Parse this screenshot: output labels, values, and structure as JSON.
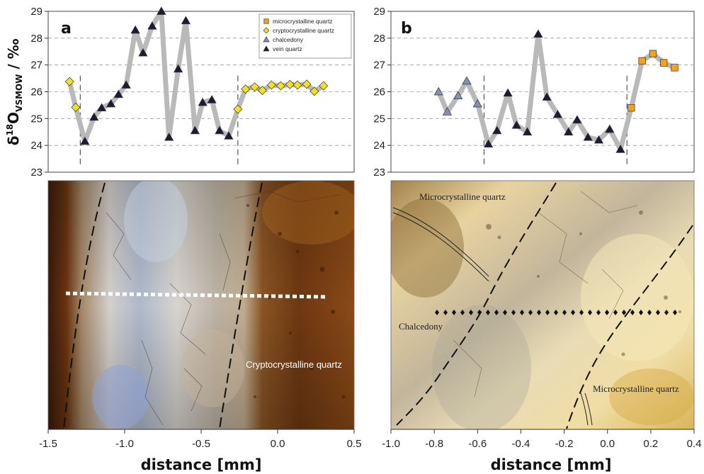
{
  "chart_data": [
    {
      "type": "line",
      "panel_label": "a",
      "ylabel_parts": [
        "δ",
        "18",
        "O",
        "VSMOW",
        " / ‰"
      ],
      "xlabel": "distance [mm]",
      "xlim": [
        -1.5,
        0.5
      ],
      "ylim": [
        23,
        29
      ],
      "xticks": [
        -1.5,
        -1.0,
        -0.5,
        0.0,
        0.5
      ],
      "xtick_labels": [
        "-1.5",
        "-1.0",
        "-0.5",
        "0.0",
        "0.5"
      ],
      "yticks": [
        23,
        24,
        25,
        26,
        27,
        28,
        29
      ],
      "grid": "horizontal dashed",
      "boundaries_x": [
        -1.29,
        -0.26
      ],
      "legend": {
        "placement": "top-right",
        "entries": [
          {
            "name": "microcrystalline quartz",
            "marker": "square",
            "color": "#f3a21b"
          },
          {
            "name": "cryptocrystalline quartz",
            "marker": "diamond",
            "color": "#f2df2a"
          },
          {
            "name": "chalcedony",
            "marker": "triangle",
            "color": "#8391b8"
          },
          {
            "name": "vein quartz",
            "marker": "triangle",
            "color": "#1b1b33"
          }
        ]
      },
      "points": [
        {
          "x": -1.36,
          "y": 26.38,
          "s": "cryptocrystalline quartz"
        },
        {
          "x": -1.32,
          "y": 25.42,
          "s": "cryptocrystalline quartz"
        },
        {
          "x": -1.26,
          "y": 24.15,
          "s": "vein quartz"
        },
        {
          "x": -1.2,
          "y": 25.05,
          "s": "vein quartz"
        },
        {
          "x": -1.15,
          "y": 25.4,
          "s": "vein quartz"
        },
        {
          "x": -1.09,
          "y": 25.55,
          "s": "vein quartz"
        },
        {
          "x": -1.04,
          "y": 25.9,
          "s": "vein quartz"
        },
        {
          "x": -0.99,
          "y": 26.25,
          "s": "vein quartz"
        },
        {
          "x": -0.93,
          "y": 28.3,
          "s": "vein quartz"
        },
        {
          "x": -0.88,
          "y": 27.45,
          "s": "vein quartz"
        },
        {
          "x": -0.82,
          "y": 28.45,
          "s": "vein quartz"
        },
        {
          "x": -0.76,
          "y": 29.0,
          "s": "vein quartz"
        },
        {
          "x": -0.71,
          "y": 24.3,
          "s": "vein quartz"
        },
        {
          "x": -0.65,
          "y": 26.85,
          "s": "vein quartz"
        },
        {
          "x": -0.6,
          "y": 28.65,
          "s": "vein quartz"
        },
        {
          "x": -0.54,
          "y": 24.55,
          "s": "vein quartz"
        },
        {
          "x": -0.49,
          "y": 25.6,
          "s": "vein quartz"
        },
        {
          "x": -0.43,
          "y": 25.7,
          "s": "vein quartz"
        },
        {
          "x": -0.38,
          "y": 24.55,
          "s": "vein quartz"
        },
        {
          "x": -0.32,
          "y": 24.35,
          "s": "vein quartz"
        },
        {
          "x": -0.26,
          "y": 25.35,
          "s": "cryptocrystalline quartz"
        },
        {
          "x": -0.21,
          "y": 26.1,
          "s": "cryptocrystalline quartz"
        },
        {
          "x": -0.15,
          "y": 26.18,
          "s": "cryptocrystalline quartz"
        },
        {
          "x": -0.1,
          "y": 26.05,
          "s": "cryptocrystalline quartz"
        },
        {
          "x": -0.04,
          "y": 26.25,
          "s": "cryptocrystalline quartz"
        },
        {
          "x": 0.02,
          "y": 26.22,
          "s": "cryptocrystalline quartz"
        },
        {
          "x": 0.08,
          "y": 26.27,
          "s": "cryptocrystalline quartz"
        },
        {
          "x": 0.13,
          "y": 26.25,
          "s": "cryptocrystalline quartz"
        },
        {
          "x": 0.19,
          "y": 26.28,
          "s": "cryptocrystalline quartz"
        },
        {
          "x": 0.24,
          "y": 26.02,
          "s": "cryptocrystalline quartz"
        },
        {
          "x": 0.3,
          "y": 26.22,
          "s": "cryptocrystalline quartz"
        }
      ],
      "image_annotations": [
        "Cryptocrystalline quartz"
      ]
    },
    {
      "type": "line",
      "panel_label": "b",
      "xlabel": "distance [mm]",
      "xlim": [
        -1.0,
        0.4
      ],
      "ylim": [
        23,
        29
      ],
      "xticks": [
        -1.0,
        -0.8,
        -0.6,
        -0.4,
        -0.2,
        0.0,
        0.2,
        0.4
      ],
      "xtick_labels": [
        "-1.0",
        "-0.8",
        "-0.6",
        "-0.4",
        "-0.2",
        "0.0",
        "0.2",
        "0.4"
      ],
      "yticks": [
        23,
        24,
        25,
        26,
        27,
        28,
        29
      ],
      "grid": "horizontal dashed",
      "boundaries_x": [
        -0.57,
        0.09
      ],
      "points": [
        {
          "x": -0.78,
          "y": 26.0,
          "s": "chalcedony"
        },
        {
          "x": -0.74,
          "y": 25.25,
          "s": "chalcedony"
        },
        {
          "x": -0.69,
          "y": 25.85,
          "s": "chalcedony"
        },
        {
          "x": -0.65,
          "y": 26.4,
          "s": "chalcedony"
        },
        {
          "x": -0.6,
          "y": 25.55,
          "s": "chalcedony"
        },
        {
          "x": -0.55,
          "y": 24.05,
          "s": "vein quartz"
        },
        {
          "x": -0.51,
          "y": 24.55,
          "s": "vein quartz"
        },
        {
          "x": -0.46,
          "y": 25.95,
          "s": "vein quartz"
        },
        {
          "x": -0.42,
          "y": 24.75,
          "s": "vein quartz"
        },
        {
          "x": -0.37,
          "y": 24.5,
          "s": "vein quartz"
        },
        {
          "x": -0.32,
          "y": 28.15,
          "s": "vein quartz"
        },
        {
          "x": -0.28,
          "y": 25.8,
          "s": "vein quartz"
        },
        {
          "x": -0.23,
          "y": 25.15,
          "s": "vein quartz"
        },
        {
          "x": -0.18,
          "y": 24.5,
          "s": "vein quartz"
        },
        {
          "x": -0.14,
          "y": 24.95,
          "s": "vein quartz"
        },
        {
          "x": -0.09,
          "y": 24.3,
          "s": "vein quartz"
        },
        {
          "x": -0.04,
          "y": 24.2,
          "s": "vein quartz"
        },
        {
          "x": 0.01,
          "y": 24.6,
          "s": "vein quartz"
        },
        {
          "x": 0.06,
          "y": 23.85,
          "s": "vein quartz"
        },
        {
          "x": 0.11,
          "y": 25.4,
          "s": "microcrystalline quartz"
        },
        {
          "x": 0.16,
          "y": 27.15,
          "s": "microcrystalline quartz"
        },
        {
          "x": 0.21,
          "y": 27.42,
          "s": "microcrystalline quartz"
        },
        {
          "x": 0.26,
          "y": 27.08,
          "s": "microcrystalline quartz"
        },
        {
          "x": 0.31,
          "y": 26.9,
          "s": "microcrystalline quartz"
        }
      ],
      "image_annotations": [
        "Microcrystalline quartz",
        "Chalcedony",
        "Microcrystalline quartz"
      ]
    }
  ]
}
